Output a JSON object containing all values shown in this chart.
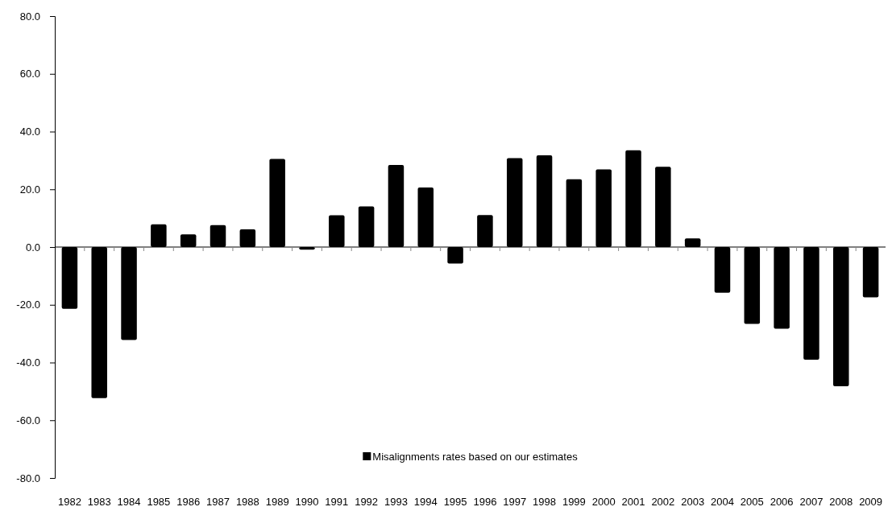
{
  "chart_data": {
    "type": "bar",
    "categories": [
      "1982",
      "1983",
      "1984",
      "1985",
      "1986",
      "1987",
      "1988",
      "1989",
      "1990",
      "1991",
      "1992",
      "1993",
      "1994",
      "1995",
      "1996",
      "1997",
      "1998",
      "1999",
      "2000",
      "2001",
      "2002",
      "2003",
      "2004",
      "2005",
      "2006",
      "2007",
      "2008",
      "2009"
    ],
    "series": [
      {
        "name": "Misalignments rates based on our estimates",
        "color": "#000000",
        "values": [
          -21.4,
          -52.3,
          -32.2,
          7.9,
          4.4,
          7.6,
          6.1,
          30.5,
          -0.9,
          11.0,
          14.1,
          28.4,
          20.6,
          -5.7,
          11.1,
          30.8,
          31.8,
          23.5,
          26.9,
          33.5,
          27.8,
          3.0,
          -15.8,
          -26.6,
          -28.3,
          -39.0,
          -48.2,
          -17.4
        ]
      }
    ],
    "ylim": [
      -80,
      80
    ],
    "yticks": [
      {
        "value": -80,
        "label": "-80.0"
      },
      {
        "value": -60,
        "label": "-60.0"
      },
      {
        "value": -40,
        "label": "-40.0"
      },
      {
        "value": -20,
        "label": "-20.0"
      },
      {
        "value": 0,
        "label": "0.0"
      },
      {
        "value": 20,
        "label": "20.0"
      },
      {
        "value": 40,
        "label": "40.0"
      },
      {
        "value": 60,
        "label": "60.0"
      },
      {
        "value": 80,
        "label": "80.0"
      }
    ],
    "legend": "bottom"
  }
}
